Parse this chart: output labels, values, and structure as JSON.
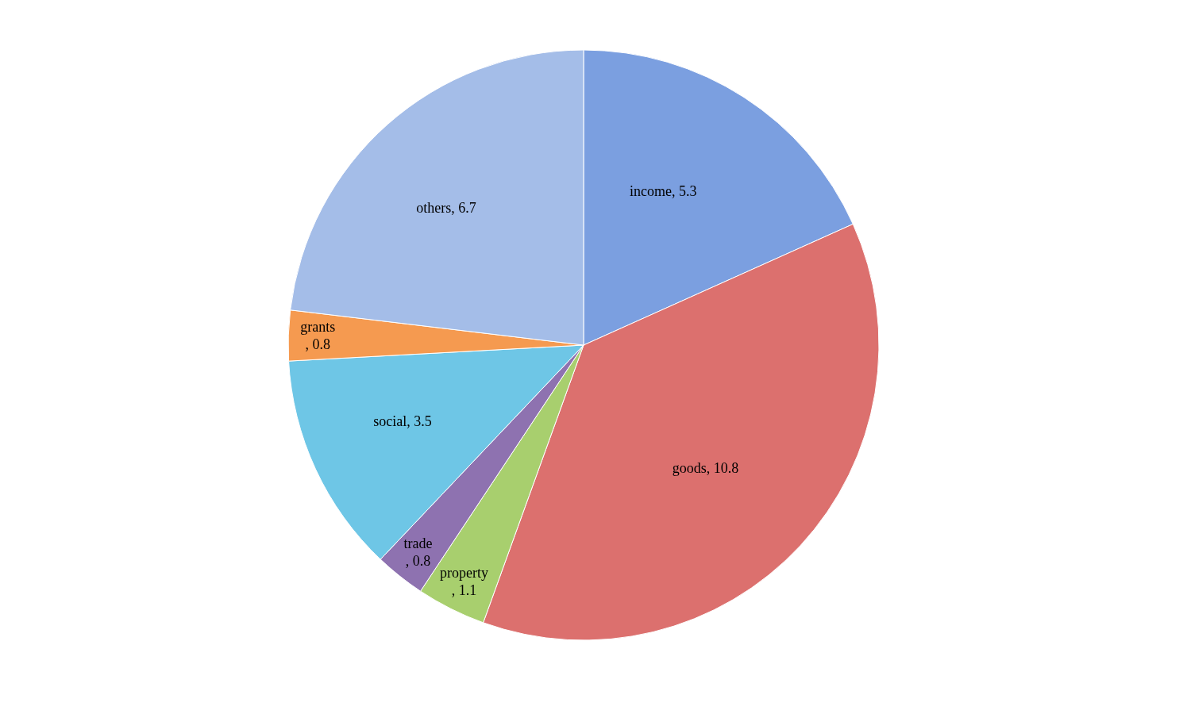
{
  "chart_data": {
    "type": "pie",
    "categories": [
      "income",
      "goods",
      "property",
      "trade",
      "social",
      "grants",
      "others"
    ],
    "values": [
      5.3,
      10.8,
      1.1,
      0.8,
      3.5,
      0.8,
      6.7
    ],
    "value_labels": [
      ",  5.3",
      ", 10.8",
      ", 1.1",
      ", 0.8",
      ", 3.5",
      ", 0.8",
      ", 6.7"
    ],
    "colors": [
      "#7b9fe0",
      "#dc706e",
      "#a8cf6e",
      "#8e72b0",
      "#6ec6e6",
      "#f59a50",
      "#a4bde8"
    ],
    "legend": false
  }
}
